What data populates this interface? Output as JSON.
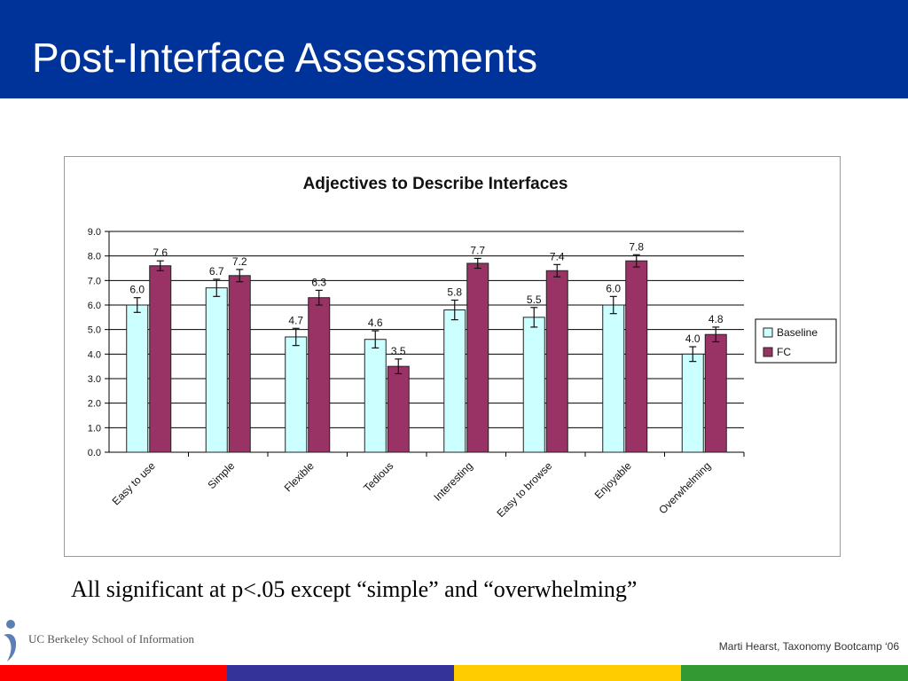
{
  "slide": {
    "title": "Post-Interface Assessments",
    "caption": "All significant at p<.05 except “simple” and “overwhelming”",
    "footer": "Marti Hearst,  Taxonomy Bootcamp ‘06",
    "logo_text": "UC Berkeley School of Information"
  },
  "colors": {
    "title_bar": "#003399",
    "baseline": "#ccffff",
    "fc": "#993366",
    "strip": [
      "#ff0000",
      "#333399",
      "#ffcc00",
      "#339933"
    ]
  },
  "chart_data": {
    "type": "bar",
    "title": "Adjectives to Describe Interfaces",
    "categories": [
      "Easy to use",
      "Simple",
      "Flexible",
      "Tedious",
      "Interesting",
      "Easy to browse",
      "Enjoyable",
      "Overwhelming"
    ],
    "series": [
      {
        "name": "Baseline",
        "values": [
          6.0,
          6.7,
          4.7,
          4.6,
          5.8,
          5.5,
          6.0,
          4.0
        ],
        "labels": [
          "6.0",
          "6.7",
          "4.7",
          "4.6",
          "5.8",
          "5.5",
          "6.0",
          "4.0"
        ],
        "errors": [
          0.3,
          0.35,
          0.35,
          0.35,
          0.4,
          0.4,
          0.35,
          0.3
        ]
      },
      {
        "name": "FC",
        "values": [
          7.6,
          7.2,
          6.3,
          3.5,
          7.7,
          7.4,
          7.8,
          4.8
        ],
        "labels": [
          "7.6",
          "7.2",
          "6.3",
          "3.5",
          "7.7",
          "7.4",
          "7.8",
          "4.8"
        ],
        "errors": [
          0.2,
          0.25,
          0.3,
          0.3,
          0.2,
          0.25,
          0.25,
          0.3
        ]
      }
    ],
    "ylim": [
      0,
      9
    ],
    "y_ticks": [
      "0.0",
      "1.0",
      "2.0",
      "3.0",
      "4.0",
      "5.0",
      "6.0",
      "7.0",
      "8.0",
      "9.0"
    ],
    "grid": true,
    "legend": "right",
    "xlabel": "",
    "ylabel": ""
  }
}
